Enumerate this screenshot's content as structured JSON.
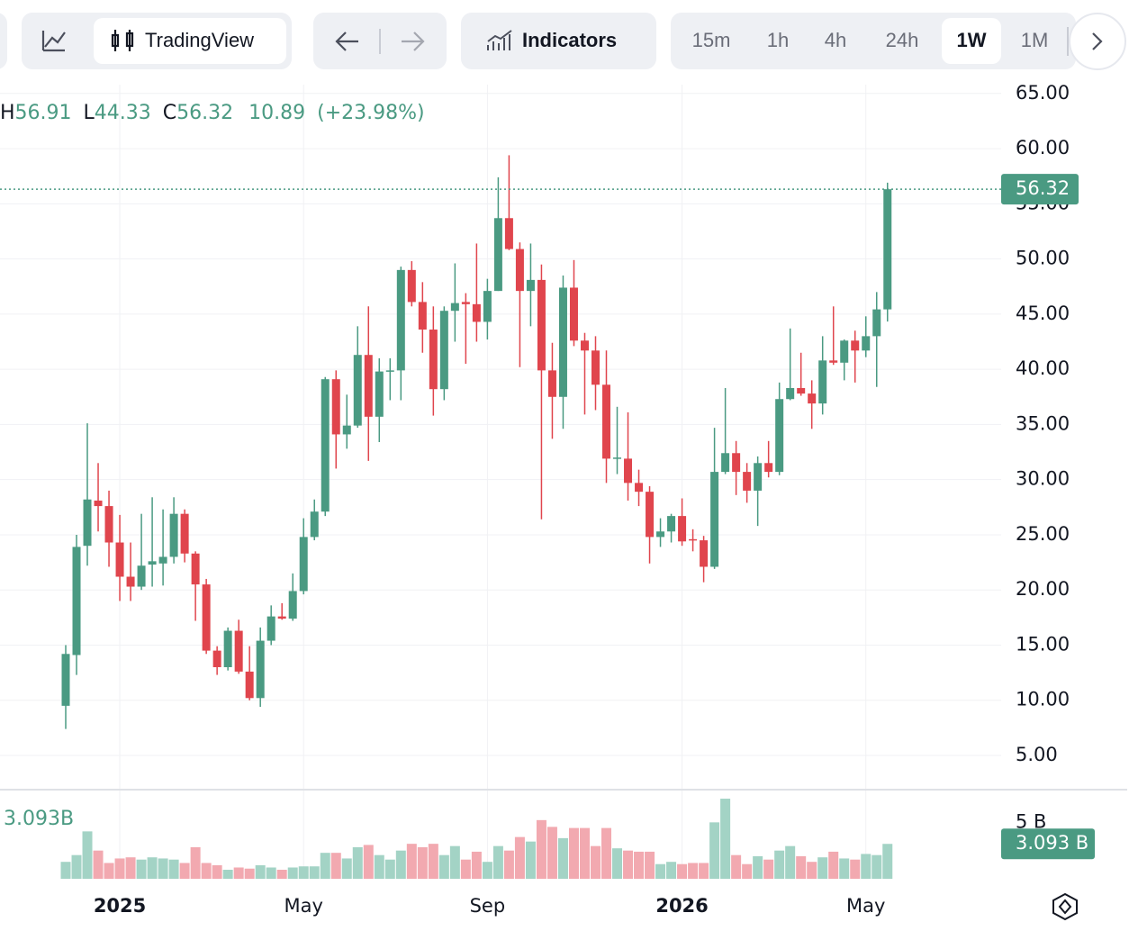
{
  "toolbar": {
    "chart_style": "TradingView",
    "indicators": "Indicators",
    "intervals": [
      "15m",
      "1h",
      "4h",
      "24h",
      "1W",
      "1M"
    ],
    "active_interval": "1W"
  },
  "chart_data": {
    "type": "candlestick",
    "categories": [
      null,
      null,
      null,
      null,
      null,
      "2025",
      null,
      null,
      null,
      null,
      null,
      null,
      null,
      null,
      null,
      null,
      null,
      null,
      null,
      null,
      null,
      null,
      "May",
      null,
      null,
      null,
      null,
      null,
      null,
      null,
      null,
      null,
      null,
      null,
      null,
      null,
      null,
      null,
      null,
      "Sep",
      null,
      null,
      null,
      null,
      null,
      null,
      null,
      null,
      null,
      null,
      null,
      null,
      null,
      null,
      null,
      null,
      null,
      "2026",
      null,
      null,
      null,
      null,
      null,
      null,
      null,
      null,
      null,
      null,
      null,
      null,
      null,
      null,
      null,
      null,
      "May",
      null,
      null
    ],
    "open": [
      9.5,
      14.1,
      24.0,
      28.1,
      27.6,
      24.3,
      21.2,
      20.3,
      22.3,
      22.4,
      23.0,
      26.9,
      23.3,
      20.5,
      14.5,
      13.0,
      16.3,
      12.6,
      10.2,
      15.4,
      17.6,
      17.4,
      19.9,
      24.8,
      27.1,
      39.1,
      34.1,
      34.9,
      41.3,
      35.7,
      39.8,
      39.9,
      49.0,
      46.1,
      43.6,
      38.2,
      45.3,
      46.1,
      45.9,
      44.3,
      47.1,
      53.7,
      50.9,
      47.1,
      48.1,
      39.9,
      37.5,
      47.4,
      42.6,
      41.7,
      38.6,
      31.9,
      31.9,
      29.7,
      28.9,
      24.8,
      25.3,
      26.7,
      24.6,
      24.5,
      22.1,
      30.7,
      32.4,
      30.7,
      29.0,
      31.5,
      30.7,
      37.3,
      38.3,
      37.8,
      36.9,
      40.8,
      40.6,
      42.6,
      41.7,
      43.0,
      45.43
    ],
    "high": [
      15.0,
      25.0,
      35.1,
      31.5,
      29.0,
      26.8,
      24.3,
      26.9,
      28.4,
      27.3,
      28.4,
      27.3,
      23.5,
      21.0,
      14.9,
      16.6,
      17.3,
      14.9,
      16.6,
      18.6,
      18.8,
      21.5,
      26.5,
      28.2,
      39.3,
      39.9,
      37.7,
      43.9,
      45.7,
      41.0,
      41.0,
      49.3,
      49.8,
      47.9,
      45.7,
      45.7,
      49.6,
      46.9,
      51.4,
      48.2,
      57.4,
      59.4,
      51.5,
      51.4,
      49.5,
      42.4,
      48.5,
      49.9,
      43.3,
      43.0,
      41.7,
      36.6,
      36.1,
      30.9,
      29.4,
      26.5,
      26.9,
      28.3,
      25.5,
      24.9,
      34.7,
      38.3,
      33.5,
      31.5,
      32.1,
      33.5,
      38.8,
      43.7,
      41.5,
      39.0,
      43.0,
      45.7,
      42.7,
      43.5,
      44.8,
      47.0,
      56.91
    ],
    "low": [
      7.4,
      12.3,
      22.2,
      25.3,
      22.1,
      19.0,
      19.0,
      20.0,
      20.3,
      20.4,
      22.4,
      22.5,
      17.2,
      14.2,
      12.3,
      12.7,
      12.4,
      10.0,
      9.4,
      15.0,
      17.3,
      17.2,
      19.6,
      24.5,
      26.7,
      31.0,
      32.8,
      34.7,
      31.7,
      33.4,
      37.2,
      37.2,
      45.7,
      41.5,
      35.8,
      37.2,
      42.5,
      40.5,
      42.5,
      42.7,
      47.1,
      50.8,
      40.2,
      43.9,
      26.4,
      33.7,
      34.6,
      42.1,
      35.9,
      36.3,
      29.7,
      30.5,
      28.1,
      27.6,
      22.4,
      23.9,
      24.3,
      24.0,
      23.5,
      20.7,
      21.9,
      30.5,
      28.6,
      27.9,
      25.8,
      30.2,
      30.4,
      37.2,
      37.6,
      34.6,
      35.9,
      40.4,
      39.0,
      38.8,
      41.1,
      38.4,
      44.33
    ],
    "close": [
      14.2,
      23.9,
      28.2,
      27.6,
      24.3,
      21.2,
      20.3,
      22.2,
      22.6,
      23.0,
      26.9,
      23.3,
      20.5,
      14.5,
      13.0,
      16.3,
      12.6,
      10.2,
      15.4,
      17.6,
      17.4,
      19.9,
      24.8,
      27.1,
      39.1,
      34.1,
      34.9,
      41.3,
      35.7,
      39.8,
      39.9,
      49.0,
      46.1,
      43.6,
      38.2,
      45.3,
      46.0,
      45.9,
      44.3,
      47.1,
      53.7,
      50.9,
      47.1,
      48.1,
      39.9,
      37.5,
      47.4,
      42.6,
      41.7,
      38.6,
      31.9,
      32.0,
      29.7,
      28.9,
      24.8,
      25.3,
      26.7,
      24.4,
      24.5,
      22.1,
      30.7,
      32.4,
      30.7,
      29.0,
      31.5,
      30.7,
      37.3,
      38.3,
      37.8,
      36.9,
      40.8,
      40.6,
      42.6,
      41.7,
      43.0,
      45.43,
      56.32
    ],
    "up_color": "#4a9a82",
    "down_color": "#e0454d",
    "ylim": [
      1.9,
      65.8
    ],
    "yticks": [
      {
        "value": 5,
        "label": "5.00"
      },
      {
        "value": 10,
        "label": "10.00"
      },
      {
        "value": 15,
        "label": "15.00"
      },
      {
        "value": 20,
        "label": "20.00"
      },
      {
        "value": 25,
        "label": "25.00"
      },
      {
        "value": 30,
        "label": "30.00"
      },
      {
        "value": 35,
        "label": "35.00"
      },
      {
        "value": 40,
        "label": "40.00"
      },
      {
        "value": 45,
        "label": "45.00"
      },
      {
        "value": 50,
        "label": "50.00"
      },
      {
        "value": 55,
        "label": "55.00"
      },
      {
        "value": 60,
        "label": "60.00"
      },
      {
        "value": 65,
        "label": "65.00"
      }
    ],
    "grid": true,
    "legend_labels": [
      "H",
      "L",
      "C"
    ],
    "change": 10.89,
    "change_percent": {
      "value": 23.98,
      "label": "(+23.98%)"
    },
    "volume": {
      "values": [
        1.5,
        2.1,
        4.2,
        2.5,
        1.4,
        1.8,
        1.9,
        1.7,
        1.9,
        1.8,
        1.7,
        1.4,
        2.8,
        1.4,
        1.2,
        0.8,
        1.0,
        0.9,
        1.2,
        1.0,
        0.8,
        1.0,
        1.1,
        1.1,
        2.3,
        2.3,
        1.8,
        2.8,
        3.0,
        2.1,
        1.7,
        2.5,
        3.1,
        2.8,
        3.1,
        2.1,
        2.9,
        1.7,
        2.4,
        1.5,
        2.9,
        2.5,
        3.7,
        3.3,
        5.2,
        4.6,
        3.6,
        4.5,
        4.5,
        2.9,
        4.5,
        2.7,
        2.5,
        2.4,
        2.4,
        1.3,
        1.5,
        1.3,
        1.4,
        1.4,
        5.0,
        7.1,
        2.1,
        1.3,
        2.0,
        1.7,
        2.5,
        2.9,
        2.0,
        1.5,
        1.9,
        2.4,
        1.8,
        1.7,
        2.2,
        2.1,
        3.093
      ],
      "ylim": [
        0,
        7.9
      ],
      "yticks": [
        {
          "value": 5,
          "label": "5 B"
        }
      ],
      "last_labels": [
        "3.093B",
        "3.093 B"
      ],
      "up_color": "#a3d3c5",
      "down_color": "#f2a9b0"
    }
  }
}
